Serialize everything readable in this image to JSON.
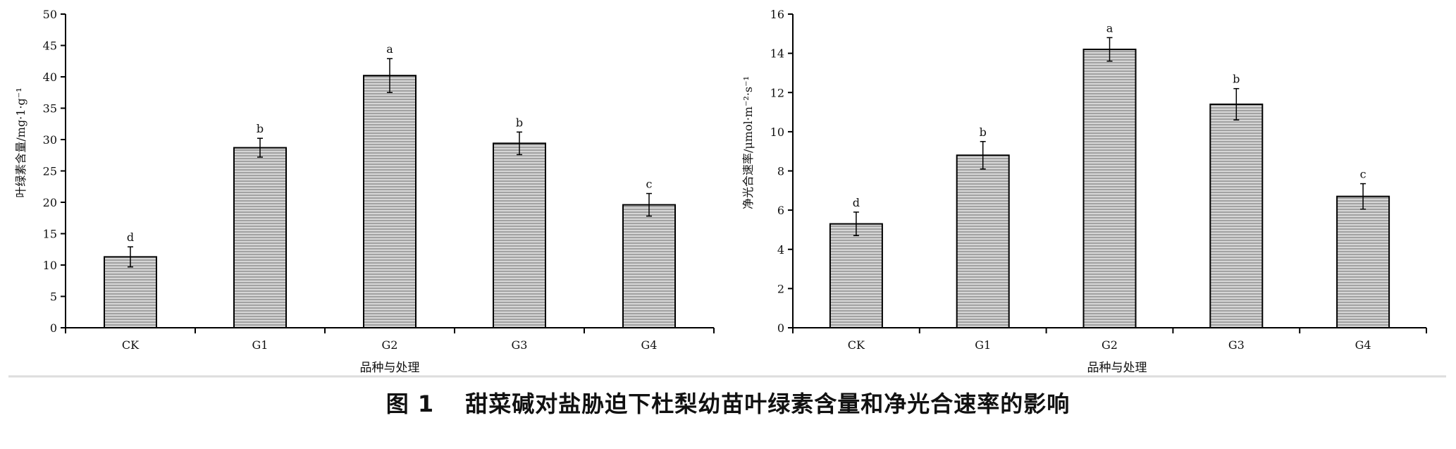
{
  "caption": {
    "label": "图 1",
    "title": "甜菜碱对盐胁迫下杜梨幼苗叶绿素含量和净光合速率的影响"
  },
  "colors": {
    "bar_fill": "#d6d6d6",
    "bar_hatch": "#6e6e6e",
    "bar_stroke": "#000000",
    "axis": "#000000"
  },
  "chart_data": [
    {
      "type": "bar",
      "title": "",
      "xlabel": "品种与处理",
      "ylabel": "叶绿素含量/mg·1·g⁻¹",
      "categories": [
        "CK",
        "G1",
        "G2",
        "G3",
        "G4"
      ],
      "values": [
        11.3,
        28.7,
        40.2,
        29.4,
        19.6
      ],
      "errors": [
        1.6,
        1.5,
        2.7,
        1.8,
        1.8
      ],
      "significance": [
        "d",
        "b",
        "a",
        "b",
        "c"
      ],
      "ylim": [
        0,
        50
      ],
      "yticks": [
        0,
        5,
        10,
        15,
        20,
        25,
        30,
        35,
        40,
        45,
        50
      ],
      "grid": false,
      "legend": "none"
    },
    {
      "type": "bar",
      "title": "",
      "xlabel": "品种与处理",
      "ylabel": "净光合速率/μmol·m⁻²·s⁻¹",
      "categories": [
        "CK",
        "G1",
        "G2",
        "G3",
        "G4"
      ],
      "values": [
        5.3,
        8.8,
        14.2,
        11.4,
        6.7
      ],
      "errors": [
        0.6,
        0.7,
        0.6,
        0.8,
        0.65
      ],
      "significance": [
        "d",
        "b",
        "a",
        "b",
        "c"
      ],
      "ylim": [
        0,
        16
      ],
      "yticks": [
        0,
        2,
        4,
        6,
        8,
        10,
        12,
        14,
        16
      ],
      "grid": false,
      "legend": "none"
    }
  ]
}
